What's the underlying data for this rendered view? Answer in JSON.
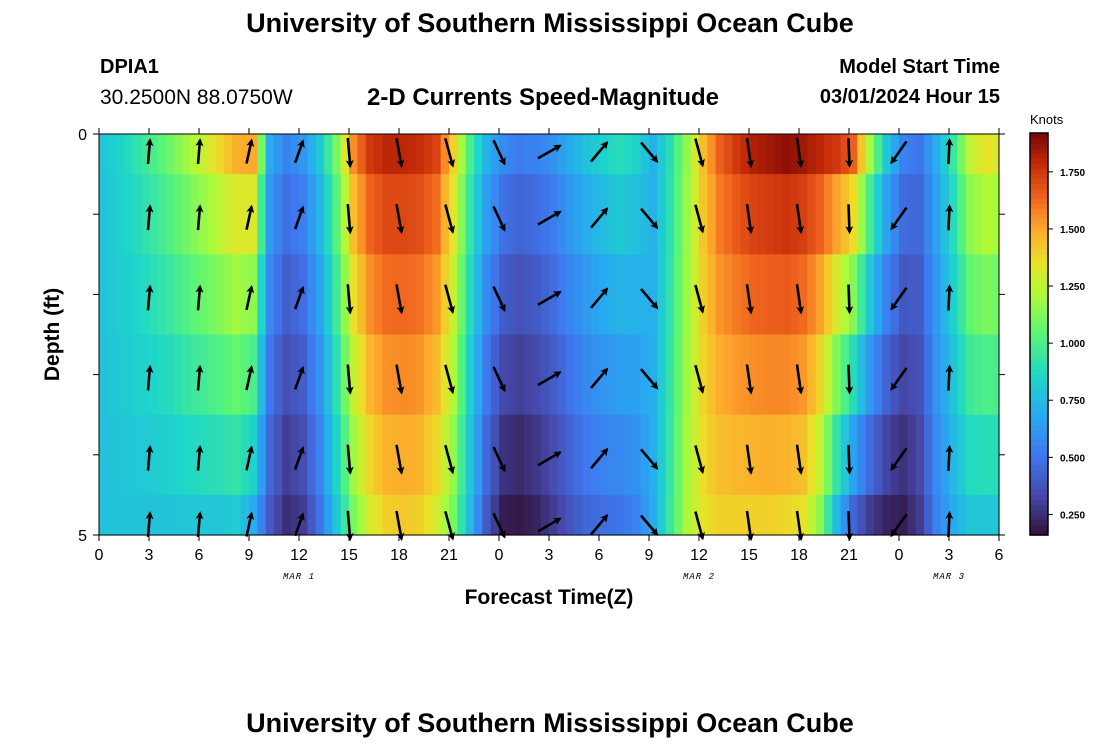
{
  "header": {
    "title": "University of Southern Mississippi Ocean Cube",
    "station": "DPIA1",
    "coordinates": "30.2500N  88.0750W",
    "subtitle": "2-D Currents Speed-Magnitude",
    "model_start_label": "Model Start Time",
    "model_start_value": "03/01/2024 Hour 15"
  },
  "footer": {
    "title": "University of Southern Mississippi Ocean Cube"
  },
  "chart_data": {
    "type": "heatmap",
    "title": "2-D Currents Speed-Magnitude",
    "xlabel": "Forecast Time(Z)",
    "ylabel": "Depth (ft)",
    "x_tick_labels": [
      "0",
      "3",
      "6",
      "9",
      "12",
      "15",
      "18",
      "21",
      "0",
      "3",
      "6",
      "9",
      "12",
      "15",
      "18",
      "21",
      "0",
      "3",
      "6"
    ],
    "x_hours_range": [
      0,
      54
    ],
    "y_tick_labels": [
      "0",
      "5"
    ],
    "ylim": [
      0,
      5
    ],
    "depth_levels": 5,
    "date_labels": [
      {
        "text": "MAR 1",
        "hour": 12
      },
      {
        "text": "MAR 2",
        "hour": 36
      },
      {
        "text": "MAR 3",
        "hour": 51
      }
    ],
    "colorbar": {
      "label": "Knots",
      "min": 0.16,
      "max": 1.92,
      "ticks": [
        "0.250",
        "0.500",
        "0.750",
        "1.000",
        "1.250",
        "1.500",
        "1.750"
      ],
      "tick_values": [
        0.25,
        0.5,
        0.75,
        1.0,
        1.25,
        1.5,
        1.75
      ]
    },
    "speed_profile": {
      "hours": [
        0,
        1,
        2,
        3,
        4,
        5,
        6,
        7,
        8,
        9,
        10,
        11,
        12,
        13,
        14,
        15,
        16,
        17,
        18,
        19,
        20,
        21,
        22,
        23,
        24,
        25,
        26,
        27,
        28,
        29,
        30,
        31,
        32,
        33,
        34,
        35,
        36,
        37,
        38,
        39,
        40,
        41,
        42,
        43,
        44,
        45,
        46,
        47,
        48,
        49,
        50,
        51,
        52,
        53,
        54
      ],
      "surface": [
        0.8,
        0.85,
        0.92,
        1.0,
        1.08,
        1.18,
        1.28,
        1.38,
        1.48,
        1.5,
        0.7,
        0.55,
        0.62,
        0.8,
        1.1,
        1.55,
        1.75,
        1.8,
        1.8,
        1.78,
        1.72,
        1.4,
        1.0,
        0.72,
        0.58,
        0.52,
        0.55,
        0.6,
        0.7,
        0.78,
        0.85,
        0.9,
        0.85,
        0.72,
        0.9,
        1.15,
        1.45,
        1.65,
        1.75,
        1.82,
        1.85,
        1.88,
        1.85,
        1.8,
        1.75,
        1.65,
        1.2,
        0.8,
        0.55,
        0.5,
        0.7,
        0.95,
        1.25,
        1.35,
        1.3
      ],
      "bottom": [
        0.78,
        0.78,
        0.78,
        0.78,
        0.78,
        0.8,
        0.8,
        0.8,
        0.82,
        0.7,
        0.4,
        0.25,
        0.3,
        0.5,
        0.8,
        1.1,
        1.3,
        1.4,
        1.42,
        1.4,
        1.3,
        1.1,
        0.75,
        0.4,
        0.2,
        0.18,
        0.22,
        0.3,
        0.38,
        0.45,
        0.48,
        0.5,
        0.55,
        0.7,
        0.95,
        1.2,
        1.35,
        1.4,
        1.4,
        1.4,
        1.4,
        1.38,
        1.35,
        1.15,
        0.75,
        0.45,
        0.3,
        0.22,
        0.2,
        0.3,
        0.55,
        0.7,
        0.8,
        0.8,
        0.8
      ]
    },
    "arrows": {
      "rows": 6,
      "depths_ft": [
        0,
        1,
        2,
        3,
        4,
        5
      ],
      "hours": [
        0,
        3,
        6,
        9,
        12,
        15,
        18,
        21,
        24,
        27,
        30,
        33,
        36,
        39,
        42,
        45,
        48,
        51,
        54
      ],
      "columns": [
        {
          "hour": 3,
          "dir": 5,
          "speed": 0.82
        },
        {
          "hour": 6,
          "dir": 5,
          "speed": 0.82
        },
        {
          "hour": 9,
          "dir": 12,
          "speed": 0.8
        },
        {
          "hour": 12,
          "dir": 20,
          "speed": 0.75
        },
        {
          "hour": 15,
          "dir": 175,
          "speed": 1.2
        },
        {
          "hour": 18,
          "dir": 170,
          "speed": 1.2
        },
        {
          "hour": 21,
          "dir": 165,
          "speed": 1.2
        },
        {
          "hour": 24,
          "dir": 155,
          "speed": 1.0
        },
        {
          "hour": 27,
          "dir": 60,
          "speed": 0.95
        },
        {
          "hour": 30,
          "dir": 40,
          "speed": 0.9
        },
        {
          "hour": 33,
          "dir": 140,
          "speed": 0.9
        },
        {
          "hour": 36,
          "dir": 165,
          "speed": 1.15
        },
        {
          "hour": 39,
          "dir": 172,
          "speed": 1.2
        },
        {
          "hour": 42,
          "dir": 172,
          "speed": 1.2
        },
        {
          "hour": 45,
          "dir": 178,
          "speed": 1.15
        },
        {
          "hour": 48,
          "dir": 215,
          "speed": 1.0
        },
        {
          "hour": 51,
          "dir": 3,
          "speed": 0.85
        }
      ]
    }
  }
}
